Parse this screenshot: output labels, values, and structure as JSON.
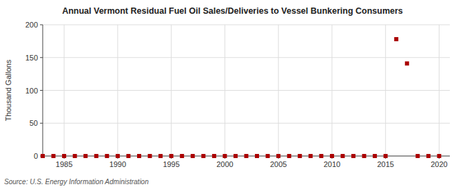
{
  "chart_data": {
    "type": "scatter",
    "title": "Annual Vermont Residual Fuel Oil Sales/Deliveries to Vessel Bunkering Consumers",
    "ylabel": "Thousand Gallons",
    "source": "Source: U.S. Energy Information Administration",
    "x": [
      1983,
      1984,
      1985,
      1986,
      1987,
      1988,
      1989,
      1990,
      1991,
      1992,
      1993,
      1994,
      1995,
      1996,
      1997,
      1998,
      1999,
      2000,
      2001,
      2002,
      2003,
      2004,
      2005,
      2006,
      2007,
      2008,
      2009,
      2010,
      2011,
      2012,
      2013,
      2014,
      2015,
      2016,
      2017,
      2018,
      2019,
      2020
    ],
    "values": [
      0,
      0,
      0,
      0,
      0,
      0,
      0,
      0,
      0,
      0,
      0,
      0,
      0,
      0,
      0,
      0,
      0,
      0,
      0,
      0,
      0,
      0,
      0,
      0,
      0,
      0,
      0,
      0,
      0,
      0,
      0,
      0,
      0,
      178,
      141,
      0,
      0,
      0
    ],
    "color": "#aa0000",
    "marker": "square",
    "xlim": [
      1983,
      2021
    ],
    "ylim": [
      0,
      200
    ],
    "xticks": [
      1985,
      1990,
      1995,
      2000,
      2005,
      2010,
      2015,
      2020
    ],
    "yticks": [
      0,
      50,
      100,
      150,
      200
    ],
    "grid": true
  }
}
